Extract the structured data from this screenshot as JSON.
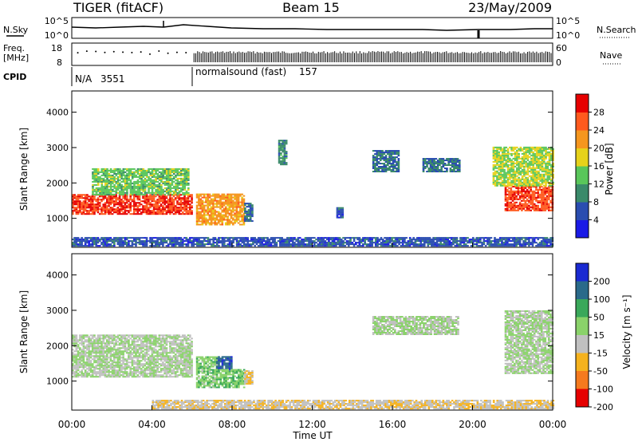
{
  "header": {
    "radar": "TIGER (fitACF)",
    "beam": "Beam 15",
    "date": "23/May/2009"
  },
  "params_panel": {
    "nsky_label": "N.Sky",
    "nsearch_label": "N.Search",
    "freq_label_1": "Freq.",
    "freq_label_2": "[MHz]",
    "nave_label": "Nave",
    "cpid_label": "CPID",
    "noise_ticks": [
      "10^5",
      "10^0"
    ],
    "noise_ticks_right": [
      "10^5",
      "10^0"
    ],
    "freq_ticks": [
      "18",
      "8"
    ],
    "nave_ticks": [
      "60",
      "0"
    ],
    "cpid_segments": [
      {
        "name": "N/A",
        "id": "3551",
        "start_hour": 0,
        "end_hour": 6.05
      },
      {
        "name": "normalsound (fast)",
        "id": "157",
        "start_hour": 6.05,
        "end_hour": 24
      }
    ]
  },
  "axes": {
    "xlabel": "Time UT",
    "x_ticks": [
      "00:00",
      "04:00",
      "08:00",
      "12:00",
      "16:00",
      "20:00",
      "00:00"
    ],
    "ylabel": "Slant Range [km]",
    "y_ticks": [
      "1000",
      "2000",
      "3000",
      "4000"
    ]
  },
  "power_scale": {
    "label": "Power [dB]",
    "ticks": [
      "4",
      "8",
      "12",
      "16",
      "20",
      "24",
      "28"
    ],
    "colors": [
      "#1a1ae6",
      "#2a4db0",
      "#3a8a6a",
      "#59c65a",
      "#e6d21a",
      "#f5961e",
      "#ff5a1e",
      "#e60000"
    ]
  },
  "velocity_scale": {
    "label": "Velocity [m s⁻¹]",
    "ticks": [
      "200",
      "100",
      "50",
      "15",
      "-15",
      "-50",
      "-100",
      "-200"
    ],
    "colors": [
      "#1a2ad2",
      "#2a6a8a",
      "#3aa85a",
      "#8ad26a",
      "#c0c0c0",
      "#f5b21e",
      "#f57a1e",
      "#e60000"
    ]
  },
  "chart_data": [
    {
      "type": "heatmap",
      "title": "",
      "panel": "power",
      "xlabel": "Time UT",
      "ylabel": "Slant Range [km]",
      "xlim_hours": [
        0,
        24
      ],
      "ylim_km": [
        180,
        4600
      ],
      "colorbar_label": "Power [dB]",
      "colorbar_range": [
        0,
        32
      ],
      "regions": [
        {
          "t0": 0.0,
          "t1": 6.0,
          "r0": 1100,
          "r1": 1650,
          "value": 28
        },
        {
          "t0": 1.0,
          "t1": 5.8,
          "r0": 1650,
          "r1": 2400,
          "value": 14
        },
        {
          "t0": 6.2,
          "t1": 8.6,
          "r0": 800,
          "r1": 1700,
          "value": 22
        },
        {
          "t0": 8.6,
          "t1": 9.0,
          "r0": 900,
          "r1": 1400,
          "value": 8
        },
        {
          "t0": 21.6,
          "t1": 24.0,
          "r0": 1200,
          "r1": 1900,
          "value": 27
        },
        {
          "t0": 21.0,
          "t1": 24.0,
          "r0": 1900,
          "r1": 3000,
          "value": 16
        },
        {
          "t0": 0.0,
          "t1": 24.0,
          "r0": 200,
          "r1": 450,
          "value": 6
        },
        {
          "t0": 15.0,
          "t1": 16.3,
          "r0": 2300,
          "r1": 2900,
          "value": 8
        },
        {
          "t0": 17.5,
          "t1": 19.3,
          "r0": 2300,
          "r1": 2700,
          "value": 8
        },
        {
          "t0": 10.3,
          "t1": 10.7,
          "r0": 2500,
          "r1": 3200,
          "value": 10
        },
        {
          "t0": 13.2,
          "t1": 13.5,
          "r0": 1000,
          "r1": 1300,
          "value": 6
        }
      ]
    },
    {
      "type": "heatmap",
      "title": "",
      "panel": "velocity",
      "xlabel": "Time UT",
      "ylabel": "Slant Range [km]",
      "xlim_hours": [
        0,
        24
      ],
      "ylim_km": [
        180,
        4600
      ],
      "colorbar_label": "Velocity [m s⁻¹]",
      "colorbar_range": [
        -250,
        250
      ],
      "regions": [
        {
          "t0": 0.0,
          "t1": 6.0,
          "r0": 1100,
          "r1": 2300,
          "value": 0
        },
        {
          "t0": 6.2,
          "t1": 7.2,
          "r0": 800,
          "r1": 1700,
          "value": 40
        },
        {
          "t0": 7.2,
          "t1": 8.0,
          "r0": 1300,
          "r1": 1700,
          "value": 180
        },
        {
          "t0": 7.2,
          "t1": 8.6,
          "r0": 800,
          "r1": 1300,
          "value": 60
        },
        {
          "t0": 8.6,
          "t1": 9.0,
          "r0": 900,
          "r1": 1300,
          "value": -60
        },
        {
          "t0": 21.6,
          "t1": 24.0,
          "r0": 1200,
          "r1": 3000,
          "value": 0
        },
        {
          "t0": 4.0,
          "t1": 24.0,
          "r0": 200,
          "r1": 450,
          "value": -50
        },
        {
          "t0": 15.0,
          "t1": 19.3,
          "r0": 2300,
          "r1": 2800,
          "value": 0
        }
      ]
    }
  ]
}
